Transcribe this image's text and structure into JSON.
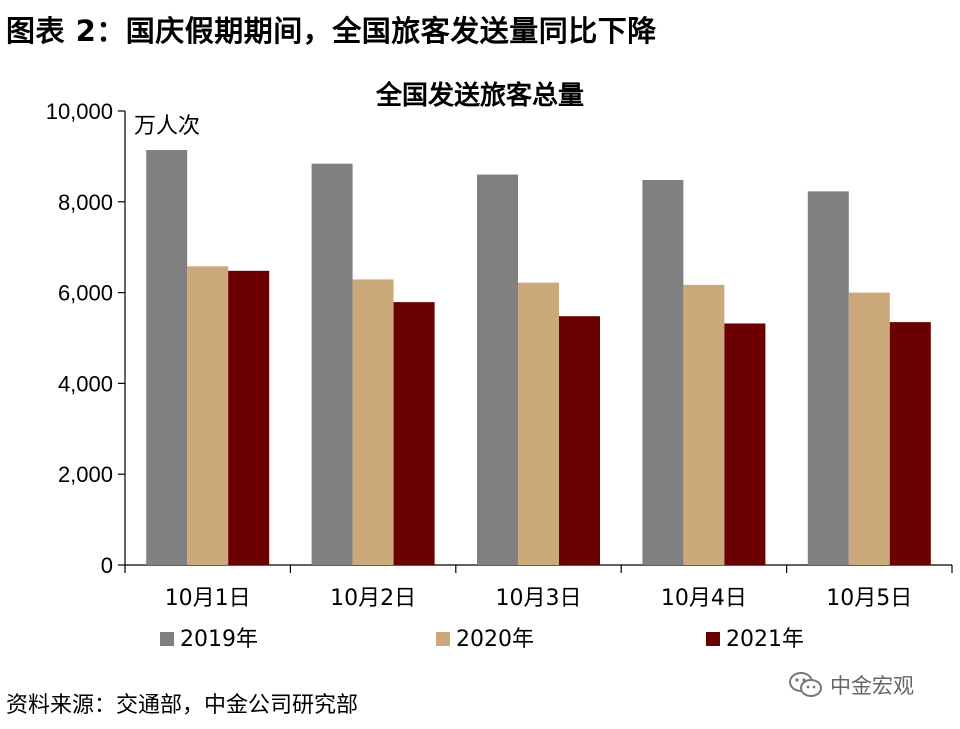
{
  "figure_title": "图表 2：国庆假期期间，全国旅客发送量同比下降",
  "source_note": "资料来源：交通部，中金公司研究部",
  "watermark_text": "中金宏观",
  "watermark_icon": "wechat-icon",
  "chart_data": {
    "type": "bar",
    "title": "全国发送旅客总量",
    "unit_label": "万人次",
    "categories": [
      "10月1日",
      "10月2日",
      "10月3日",
      "10月4日",
      "10月5日"
    ],
    "series": [
      {
        "name": "2019年",
        "color": "#808080",
        "values": [
          9140,
          8840,
          8600,
          8480,
          8230
        ]
      },
      {
        "name": "2020年",
        "color": "#cba97b",
        "values": [
          6580,
          6290,
          6220,
          6170,
          6000
        ]
      },
      {
        "name": "2021年",
        "color": "#6b0000",
        "values": [
          6480,
          5790,
          5480,
          5320,
          5350
        ]
      }
    ],
    "yticks": [
      "10,000",
      "8,000",
      "6,000",
      "4,000",
      "2,000",
      "0"
    ],
    "ylim": [
      0,
      10000
    ],
    "grid": false,
    "legend_position": "bottom"
  }
}
